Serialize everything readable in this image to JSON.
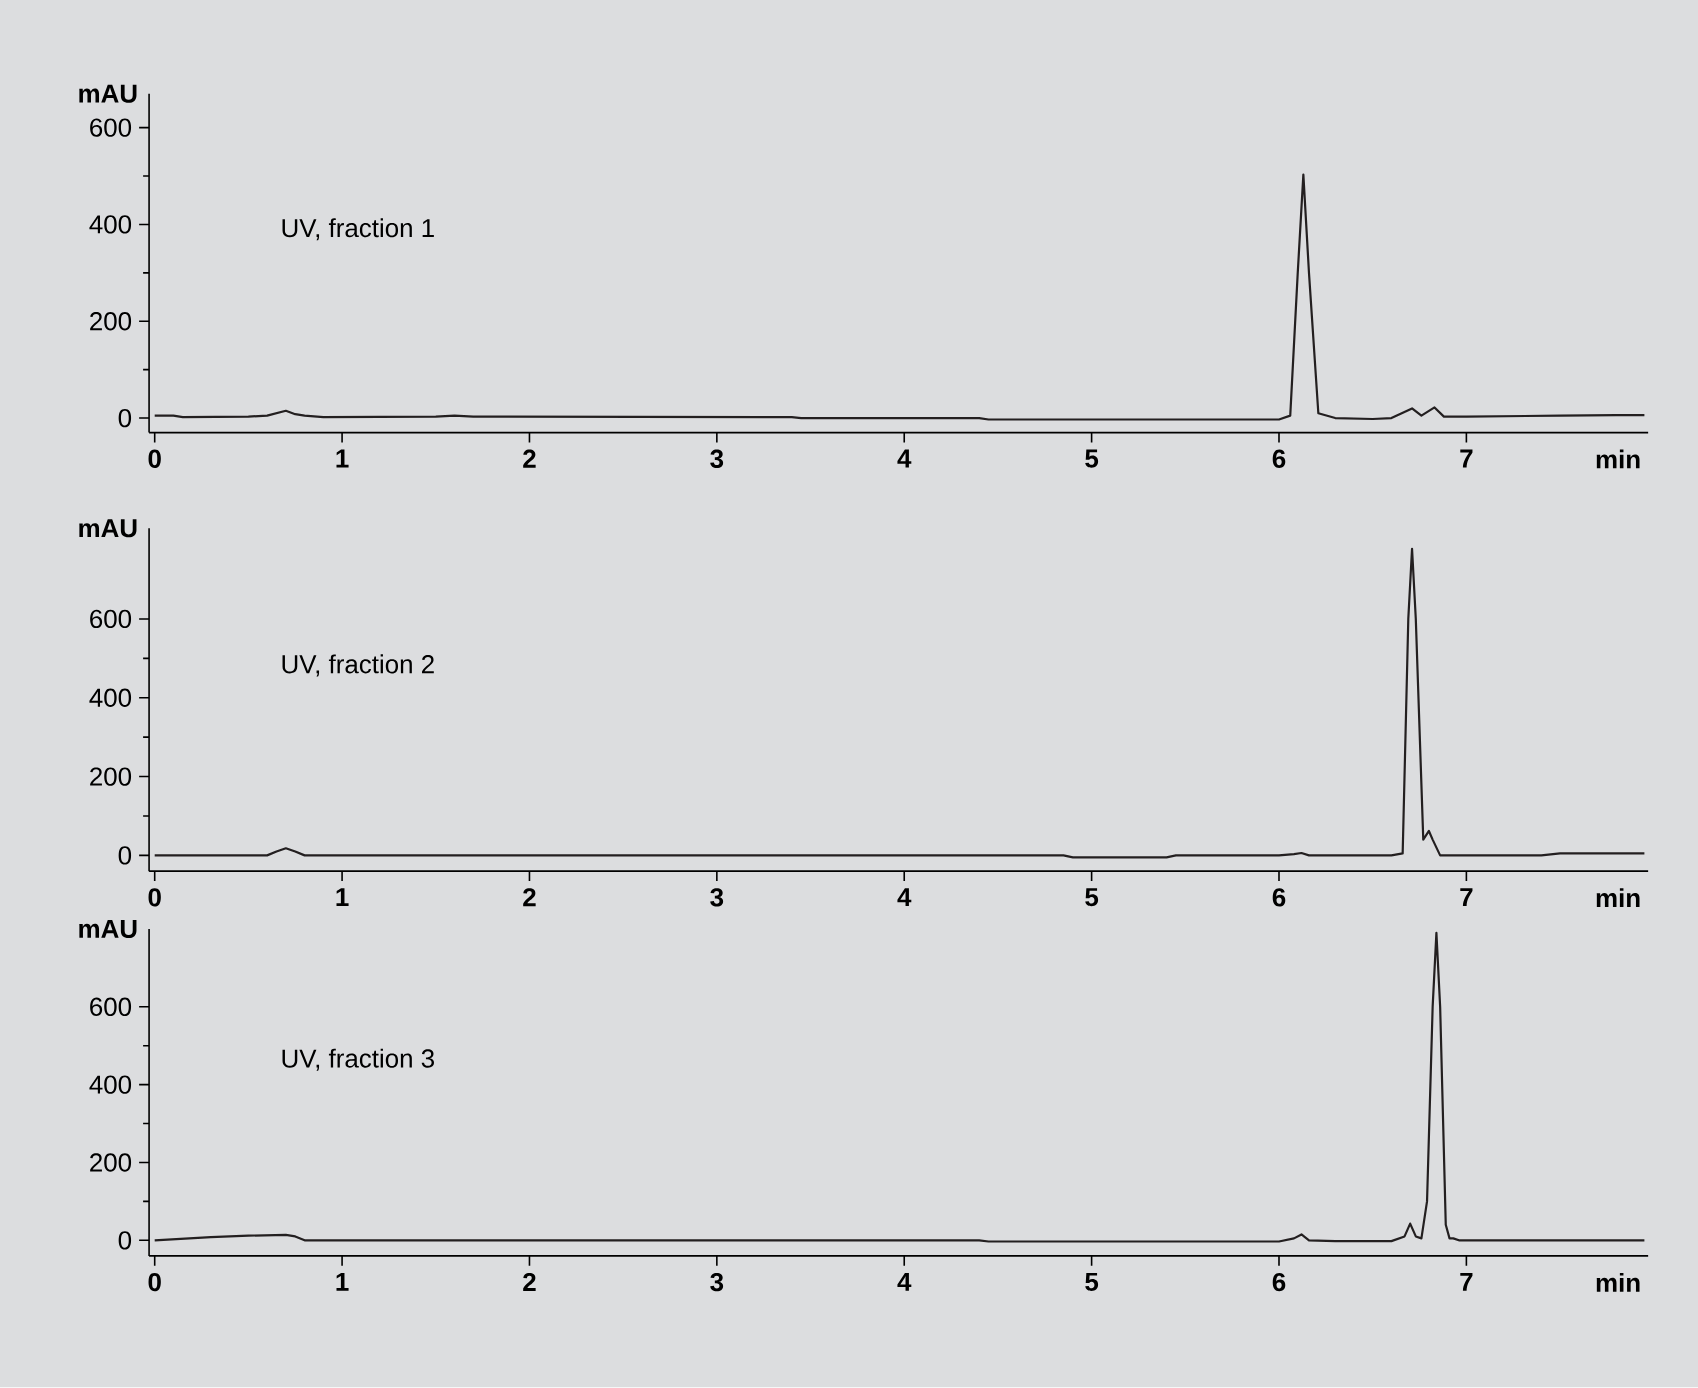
{
  "chart_data": [
    {
      "type": "line",
      "xlabel": "min",
      "ylabel": "mAU",
      "annotations": [
        "UV, fraction 1"
      ],
      "color": "#231f20",
      "xlim": [
        -0.03,
        7.97
      ],
      "ylim": [
        -30,
        670
      ],
      "xticks": [
        0,
        1,
        2,
        3,
        4,
        5,
        6,
        7
      ],
      "yticks": [
        0,
        200,
        400,
        600
      ],
      "x": [
        0,
        0.1,
        0.15,
        0.5,
        0.6,
        0.7,
        0.75,
        0.8,
        0.9,
        1.5,
        1.6,
        1.7,
        3.4,
        3.45,
        4.4,
        4.45,
        6.0,
        6.06,
        6.1,
        6.13,
        6.16,
        6.21,
        6.3,
        6.5,
        6.6,
        6.71,
        6.76,
        6.83,
        6.88,
        7.0,
        7.5,
        7.8,
        7.95
      ],
      "values": [
        5,
        5,
        2,
        3,
        5,
        15,
        8,
        5,
        2,
        3,
        5,
        3,
        2,
        0,
        0,
        -3,
        -3,
        5,
        300,
        503,
        300,
        10,
        0,
        -2,
        0,
        20,
        5,
        22,
        3,
        3,
        5,
        6,
        6
      ]
    },
    {
      "type": "line",
      "xlabel": "min",
      "ylabel": "mAU",
      "annotations": [
        "UV, fraction 2"
      ],
      "color": "#231f20",
      "xlim": [
        -0.03,
        7.97
      ],
      "ylim": [
        -40,
        830
      ],
      "xticks": [
        0,
        1,
        2,
        3,
        4,
        5,
        6,
        7
      ],
      "yticks": [
        0,
        200,
        400,
        600
      ],
      "x": [
        0,
        0.6,
        0.65,
        0.7,
        0.75,
        0.8,
        1.0,
        4.85,
        4.9,
        5.4,
        5.45,
        6.0,
        6.08,
        6.12,
        6.16,
        6.3,
        6.6,
        6.66,
        6.69,
        6.71,
        6.73,
        6.77,
        6.8,
        6.82,
        6.86,
        7.0,
        7.4,
        7.5,
        7.8,
        7.95
      ],
      "values": [
        0,
        0,
        10,
        18,
        10,
        0,
        0,
        0,
        -5,
        -5,
        0,
        0,
        3,
        6,
        0,
        0,
        0,
        5,
        600,
        778,
        600,
        40,
        62,
        40,
        0,
        0,
        0,
        5,
        5,
        5
      ]
    },
    {
      "type": "line",
      "xlabel": "min",
      "ylabel": "mAU",
      "annotations": [
        "UV, fraction 3"
      ],
      "color": "#231f20",
      "xlim": [
        -0.03,
        7.97
      ],
      "ylim": [
        -40,
        800
      ],
      "xticks": [
        0,
        1,
        2,
        3,
        4,
        5,
        6,
        7
      ],
      "yticks": [
        0,
        200,
        400,
        600
      ],
      "x": [
        0,
        0.3,
        0.5,
        0.7,
        0.75,
        0.8,
        1.0,
        4.4,
        4.45,
        6.0,
        6.08,
        6.12,
        6.16,
        6.3,
        6.6,
        6.67,
        6.7,
        6.73,
        6.76,
        6.79,
        6.82,
        6.84,
        6.86,
        6.89,
        6.91,
        6.93,
        6.96,
        7.0,
        7.95
      ],
      "values": [
        0,
        8,
        12,
        14,
        10,
        0,
        0,
        0,
        -3,
        -3,
        5,
        15,
        0,
        -2,
        -2,
        10,
        43,
        10,
        5,
        100,
        600,
        790,
        600,
        40,
        5,
        5,
        0,
        0,
        0
      ]
    }
  ]
}
